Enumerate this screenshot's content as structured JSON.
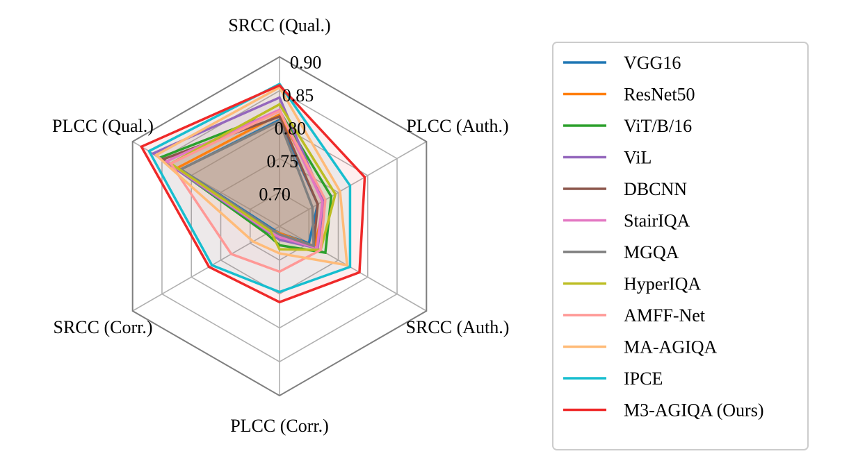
{
  "chart_data": {
    "type": "radar",
    "title": "",
    "axes": [
      "SRCC (Qual.)",
      "PLCC (Auth.)",
      "SRCC (Auth.)",
      "PLCC (Corr.)",
      "SRCC (Corr.)",
      "PLCC (Qual.)"
    ],
    "rlim": [
      0.65,
      0.9
    ],
    "ticks": [
      0.7,
      0.75,
      0.8,
      0.85,
      0.9
    ],
    "tick_labels": [
      "0.70",
      "0.75",
      "0.80",
      "0.85",
      "0.90"
    ],
    "grid": true,
    "legend_position": "right",
    "series": [
      {
        "name": "VGG16",
        "color": "#1f77b4",
        "values": [
          0.807,
          0.715,
          0.7,
          0.66,
          0.66,
          0.818
        ]
      },
      {
        "name": "ResNet50",
        "color": "#ff7f0e",
        "values": [
          0.815,
          0.727,
          0.71,
          0.66,
          0.662,
          0.823
        ]
      },
      {
        "name": "ViT/B/16",
        "color": "#2ca02c",
        "values": [
          0.82,
          0.738,
          0.728,
          0.678,
          0.672,
          0.853
        ]
      },
      {
        "name": "ViL",
        "color": "#9467bd",
        "values": [
          0.84,
          0.725,
          0.715,
          0.67,
          0.668,
          0.865
        ]
      },
      {
        "name": "DBCNN",
        "color": "#8c564b",
        "values": [
          0.812,
          0.715,
          0.708,
          0.662,
          0.662,
          0.848
        ]
      },
      {
        "name": "StairIQA",
        "color": "#e377c2",
        "values": [
          0.822,
          0.723,
          0.714,
          0.666,
          0.667,
          0.842
        ]
      },
      {
        "name": "MGQA",
        "color": "#7f7f7f",
        "values": [
          0.805,
          0.706,
          0.708,
          0.662,
          0.662,
          0.818
        ]
      },
      {
        "name": "HyperIQA",
        "color": "#bcbd22",
        "values": [
          0.83,
          0.745,
          0.72,
          0.684,
          0.665,
          0.835
        ]
      },
      {
        "name": "AMFF-Net",
        "color": "#ff9896",
        "values": [
          0.82,
          0.728,
          0.72,
          0.717,
          0.732,
          0.835
        ]
      },
      {
        "name": "MA-AGIQA",
        "color": "#ffbb78",
        "values": [
          0.855,
          0.753,
          0.765,
          0.69,
          0.695,
          0.86
        ]
      },
      {
        "name": "IPCE",
        "color": "#17becf",
        "values": [
          0.86,
          0.77,
          0.77,
          0.747,
          0.765,
          0.872
        ]
      },
      {
        "name": "M3-AGIQA (Ours)",
        "color": "#ef2929",
        "values": [
          0.858,
          0.795,
          0.786,
          0.762,
          0.77,
          0.885
        ]
      }
    ]
  }
}
